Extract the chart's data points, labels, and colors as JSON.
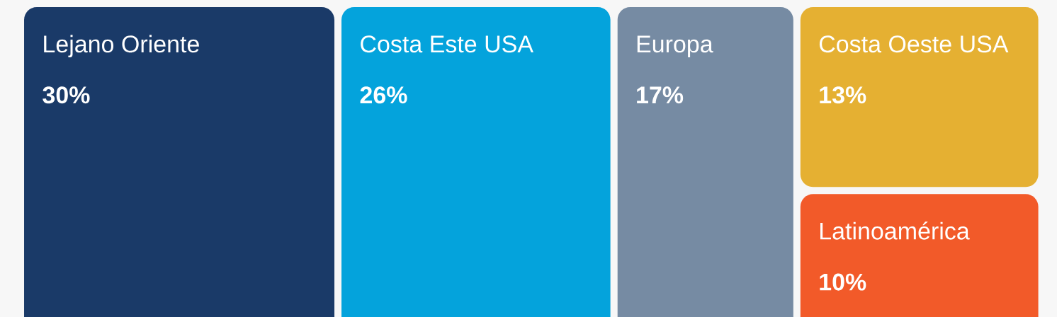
{
  "chart_data": {
    "type": "other",
    "categories": [
      "Lejano Oriente",
      "Costa Este USA",
      "Europa",
      "Costa Oeste USA",
      "Latinoamérica"
    ],
    "values": [
      30,
      26,
      17,
      13,
      10
    ],
    "value_labels": [
      "30%",
      "26%",
      "17%",
      "13%",
      "10%"
    ],
    "colors": [
      "#1a3a68",
      "#04a3dc",
      "#768ba3",
      "#e5b032",
      "#f25a29"
    ]
  }
}
